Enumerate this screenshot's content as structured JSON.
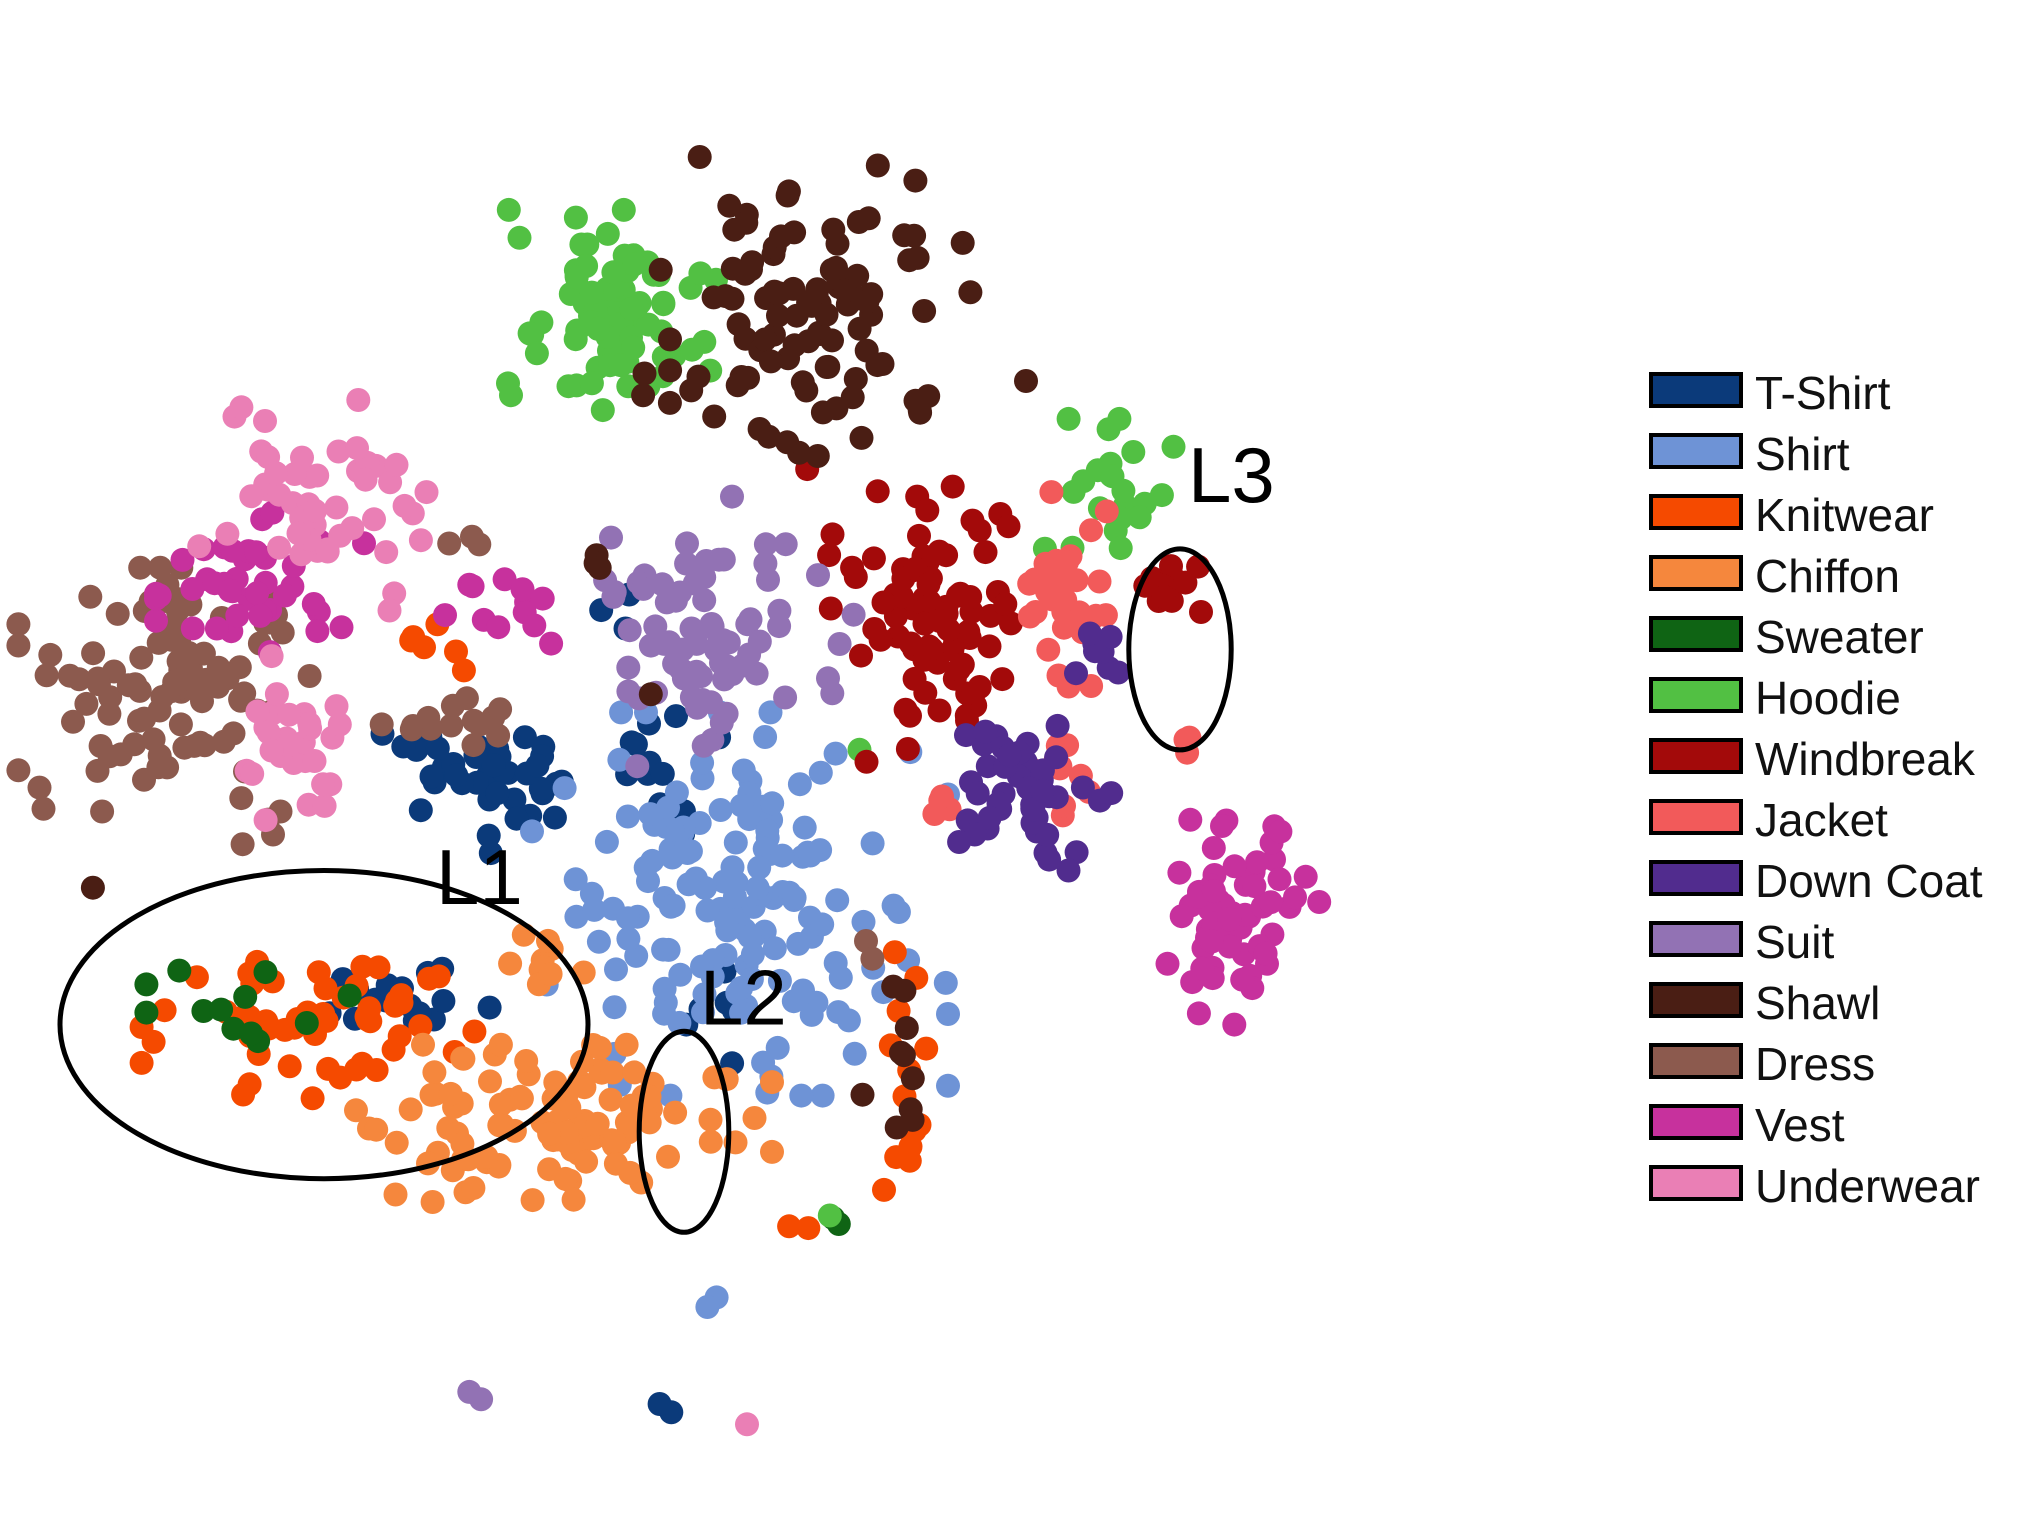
{
  "chart_data": {
    "type": "scatter",
    "title": "",
    "xlabel": "",
    "ylabel": "",
    "grid": false,
    "axes_visible": false,
    "xlim": [
      0,
      100
    ],
    "ylim": [
      0,
      100
    ],
    "legend": {
      "placement": "right"
    },
    "series": [
      {
        "name": "T-Shirt",
        "color": "#0b3a7a",
        "clusters": [
          [
            28,
            49,
            5,
            4,
            40
          ],
          [
            40,
            51,
            3,
            6,
            12
          ],
          [
            24,
            33,
            6,
            3,
            16
          ],
          [
            43,
            31,
            2,
            4,
            6
          ],
          [
            37,
            62,
            2,
            2,
            3
          ],
          [
            41,
            2,
            2,
            1,
            2
          ]
        ]
      },
      {
        "name": "Shirt",
        "color": "#6e93d6",
        "clusters": [
          [
            45,
            40,
            10,
            11,
            150
          ],
          [
            43,
            10,
            1,
            1,
            2
          ]
        ]
      },
      {
        "name": "Knitwear",
        "color": "#f54a00",
        "clusters": [
          [
            18,
            32,
            8,
            5,
            60
          ],
          [
            55,
            26,
            2,
            8,
            14
          ],
          [
            27,
            59,
            3,
            3,
            6
          ],
          [
            49,
            16,
            1,
            1,
            2
          ]
        ]
      },
      {
        "name": "Chiffon",
        "color": "#f5873d",
        "clusters": [
          [
            34,
            23,
            10,
            5,
            110
          ],
          [
            33,
            36,
            2,
            2,
            10
          ]
        ]
      },
      {
        "name": "Sweater",
        "color": "#0f6414",
        "clusters": [
          [
            17,
            32,
            7,
            3,
            12
          ],
          [
            51,
            17,
            1,
            1,
            2
          ]
        ]
      },
      {
        "name": "Hoodie",
        "color": "#52c043",
        "clusters": [
          [
            37,
            84,
            5,
            6,
            80
          ],
          [
            68,
            71,
            4,
            4,
            22
          ],
          [
            52,
            52,
            1,
            1,
            1
          ],
          [
            50,
            17,
            1,
            1,
            1
          ]
        ]
      },
      {
        "name": "Windbreak",
        "color": "#a30a0a",
        "clusters": [
          [
            57,
            62,
            6,
            9,
            85
          ],
          [
            72,
            63,
            2,
            3,
            14
          ]
        ]
      },
      {
        "name": "Jacket",
        "color": "#f25a5a",
        "clusters": [
          [
            66,
            63,
            3,
            6,
            36
          ],
          [
            65,
            50,
            2,
            3,
            10
          ],
          [
            73,
            52,
            1,
            2,
            3
          ],
          [
            58,
            47,
            1,
            2,
            4
          ]
        ]
      },
      {
        "name": "Down Coat",
        "color": "#512c8e",
        "clusters": [
          [
            63,
            49,
            4,
            5,
            50
          ],
          [
            68,
            60,
            2,
            4,
            8
          ]
        ]
      },
      {
        "name": "Suit",
        "color": "#9272b4",
        "clusters": [
          [
            43,
            60,
            7,
            8,
            80
          ],
          [
            28,
            3,
            1,
            1,
            2
          ]
        ]
      },
      {
        "name": "Shawl",
        "color": "#4a1e14",
        "clusters": [
          [
            49,
            84,
            8,
            10,
            100
          ],
          [
            55,
            29,
            2,
            6,
            10
          ],
          [
            35,
            65,
            1,
            1,
            3
          ],
          [
            62,
            79,
            1,
            1,
            1
          ],
          [
            4,
            41,
            1,
            1,
            1
          ],
          [
            40,
            55,
            1,
            1,
            1
          ]
        ]
      },
      {
        "name": "Dress",
        "color": "#8c5a4e",
        "clusters": [
          [
            9,
            56,
            7,
            7,
            100
          ],
          [
            27,
            54,
            4,
            2,
            14
          ],
          [
            53,
            36,
            1,
            1,
            2
          ],
          [
            28,
            67,
            1,
            1,
            3
          ],
          [
            15,
            47,
            2,
            2,
            4
          ]
        ]
      },
      {
        "name": "Vest",
        "color": "#c7319d",
        "clusters": [
          [
            15,
            64,
            5,
            4,
            42
          ],
          [
            30,
            62,
            3,
            3,
            12
          ],
          [
            76,
            39,
            4,
            7,
            60
          ]
        ]
      },
      {
        "name": "Underwear",
        "color": "#ea7fb5",
        "clusters": [
          [
            19,
            71,
            6,
            7,
            48
          ],
          [
            17,
            52,
            3,
            5,
            30
          ],
          [
            45,
            1,
            1,
            1,
            1
          ]
        ]
      }
    ],
    "annotations": [
      {
        "label": "L1",
        "cx": 19,
        "cy": 31,
        "rx": 16.5,
        "ry": 11.5,
        "label_x": 26,
        "label_y": 40
      },
      {
        "label": "L2",
        "cx": 41.5,
        "cy": 23,
        "rx": 2.8,
        "ry": 7.5,
        "label_x": 42.5,
        "label_y": 31
      },
      {
        "label": "L3",
        "cx": 72.5,
        "cy": 59,
        "rx": 3.2,
        "ry": 7.5,
        "label_x": 73,
        "label_y": 70
      }
    ]
  }
}
